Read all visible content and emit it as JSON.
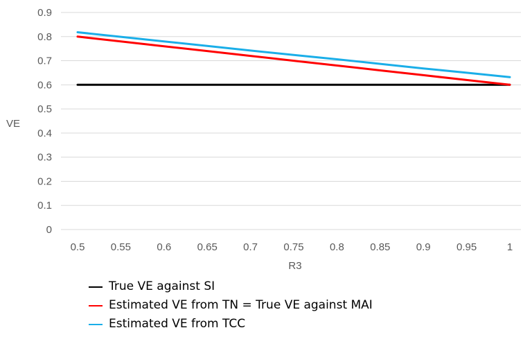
{
  "chart_data": {
    "type": "line",
    "title": "",
    "xlabel": "R3",
    "ylabel": "VE",
    "x": [
      0.5,
      0.55,
      0.6,
      0.65,
      0.7,
      0.75,
      0.8,
      0.85,
      0.9,
      0.95,
      1
    ],
    "x_tick_labels": [
      "0.5",
      "0.55",
      "0.6",
      "0.65",
      "0.7",
      "0.75",
      "0.8",
      "0.85",
      "0.9",
      "0.95",
      "1"
    ],
    "y_tick_labels": [
      "0",
      "0.1",
      "0.2",
      "0.3",
      "0.4",
      "0.5",
      "0.6",
      "0.7",
      "0.8",
      "0.9"
    ],
    "xlim": [
      0.5,
      1
    ],
    "ylim": [
      0,
      0.9
    ],
    "grid": "horizontal",
    "legend_position": "bottom",
    "series": [
      {
        "name": "True VE against SI",
        "color": "#000000",
        "values": [
          0.6,
          0.6,
          0.6,
          0.6,
          0.6,
          0.6,
          0.6,
          0.6,
          0.6,
          0.6,
          0.6
        ]
      },
      {
        "name": "Estimated VE from TN = True VE against MAI",
        "color": "#ff0000",
        "values": [
          0.8,
          0.78,
          0.76,
          0.74,
          0.72,
          0.7,
          0.68,
          0.66,
          0.64,
          0.62,
          0.6
        ]
      },
      {
        "name": "Estimated VE from TCC",
        "color": "#1aaee8",
        "values": [
          0.818,
          0.799,
          0.78,
          0.761,
          0.742,
          0.724,
          0.706,
          0.687,
          0.668,
          0.65,
          0.632
        ]
      }
    ]
  }
}
